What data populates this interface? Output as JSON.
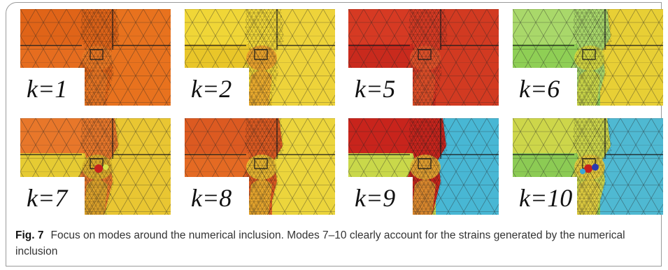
{
  "figure": {
    "panels": [
      {
        "label": "k=1",
        "colors": {
          "a": "#e66d1f",
          "b": "#e06418",
          "c": "#ea7a26",
          "d": "#e8721e"
        }
      },
      {
        "label": "k=2",
        "colors": {
          "a": "#e9c629",
          "b": "#f0d637",
          "c": "#e99a2a",
          "d": "#eed33a"
        }
      },
      {
        "label": "k=5",
        "colors": {
          "a": "#c92a1d",
          "b": "#d63a23",
          "c": "#e0562a",
          "d": "#d23a21"
        }
      },
      {
        "label": "k=6",
        "colors": {
          "a": "#8fcf55",
          "b": "#a9d86a",
          "c": "#d9d53a",
          "d": "#e8cf35"
        }
      },
      {
        "label": "k=7",
        "colors": {
          "a": "#e6cb33",
          "b": "#e8772a",
          "c": "#d9b52b",
          "d": "#e9c632"
        }
      },
      {
        "label": "k=8",
        "colors": {
          "a": "#e46a23",
          "b": "#dc5a21",
          "c": "#e9c532",
          "d": "#ecd53c"
        }
      },
      {
        "label": "k=9",
        "colors": {
          "a": "#c9d84a",
          "b": "#c8241c",
          "c": "#e5b534",
          "d": "#48b7d4"
        }
      },
      {
        "label": "k=10",
        "colors": {
          "a": "#8ccb54",
          "b": "#cdd64a",
          "c": "#e7c73a",
          "d": "#4fb9d2"
        }
      }
    ],
    "caption_label": "Fig. 7",
    "caption_text": "Focus on modes around the numerical inclusion. Modes 7–10 clearly account for the strains generated by the numerical inclusion"
  }
}
